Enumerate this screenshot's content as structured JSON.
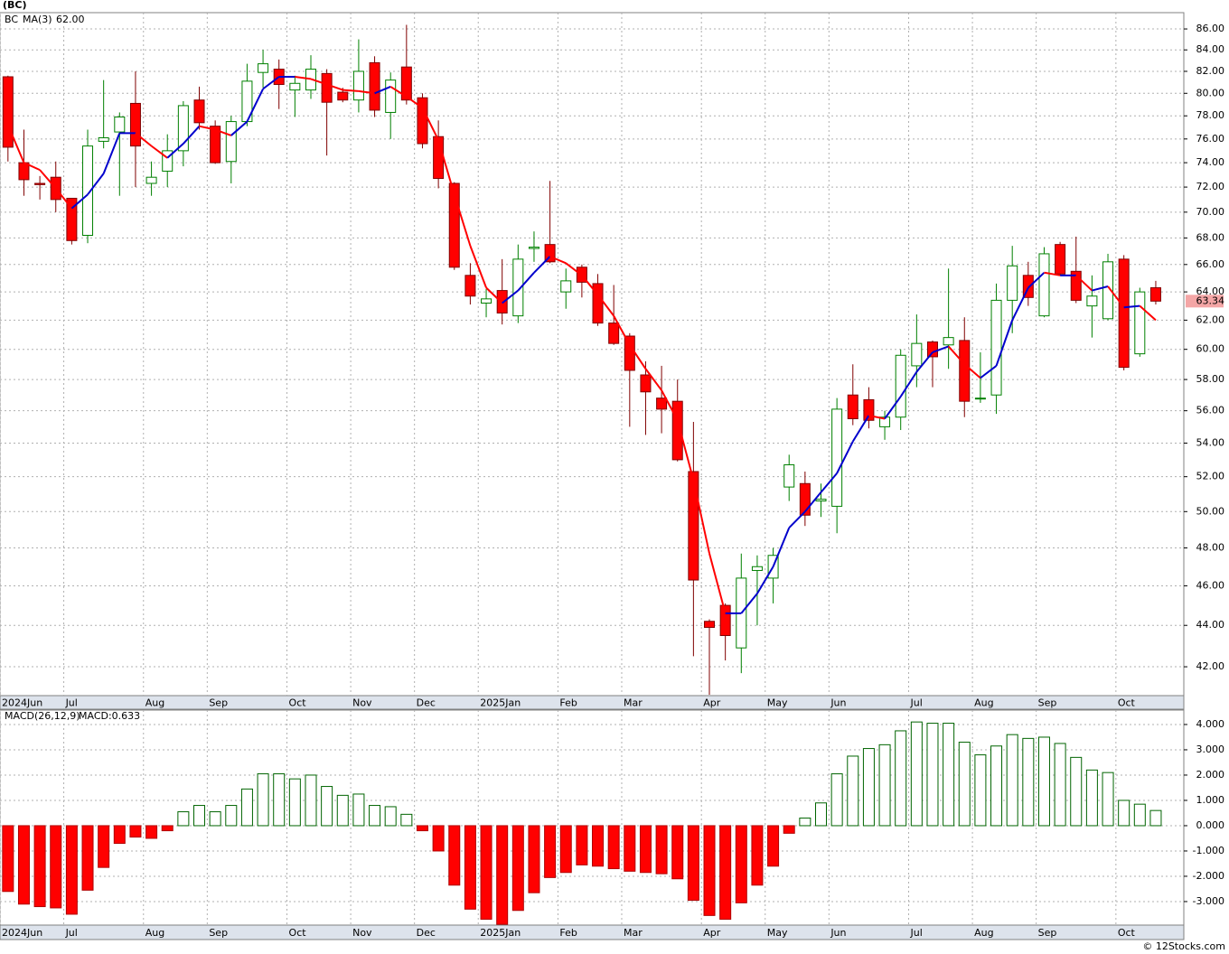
{
  "header": "(BC)",
  "footer": "© 12Stocks.com",
  "chart_data": [
    {
      "type": "candlestick",
      "symbol": "BC",
      "last_price_label": "63.34",
      "open": [
        81.5,
        74.0,
        72.3,
        72.8,
        71.1,
        68.2,
        75.8,
        76.6,
        79.1,
        72.3,
        73.3,
        75.0,
        79.4,
        77.1,
        74.1,
        77.5,
        81.9,
        82.2,
        80.3,
        80.3,
        81.8,
        80.1,
        79.4,
        82.8,
        78.3,
        82.4,
        79.6,
        76.2,
        72.3,
        65.2,
        63.2,
        64.1,
        62.3,
        67.2,
        67.5,
        64.0,
        65.8,
        64.6,
        61.8,
        60.9,
        58.3,
        56.8,
        56.6,
        52.3,
        44.2,
        45.0,
        42.9,
        46.8,
        46.4,
        51.4,
        51.6,
        50.6,
        50.3,
        57.0,
        56.7,
        55.0,
        55.6,
        58.9,
        60.5,
        60.3,
        60.6,
        56.8,
        57.0,
        63.4,
        65.2,
        62.3,
        67.5,
        65.5,
        63.0,
        62.1,
        66.4,
        59.7,
        64.3
      ],
      "high": [
        81.6,
        76.8,
        72.9,
        74.1,
        71.1,
        76.8,
        81.2,
        78.3,
        82.0,
        74.1,
        76.4,
        79.3,
        80.6,
        77.6,
        78.0,
        82.7,
        84.0,
        83.1,
        81.6,
        83.5,
        82.2,
        80.5,
        85.0,
        83.4,
        81.9,
        86.4,
        80.0,
        77.6,
        72.4,
        66.1,
        64.2,
        66.4,
        67.5,
        68.5,
        72.5,
        65.7,
        66.0,
        65.3,
        64.5,
        61.1,
        59.2,
        58.9,
        58.0,
        55.3,
        44.3,
        45.1,
        47.7,
        47.6,
        48.0,
        53.3,
        52.3,
        51.6,
        56.8,
        59.0,
        57.5,
        56.0,
        60.0,
        62.4,
        60.6,
        65.7,
        62.2,
        59.8,
        64.6,
        67.4,
        66.2,
        67.3,
        67.7,
        68.1,
        65.2,
        66.8,
        66.7,
        64.3,
        64.8
      ],
      "low": [
        74.1,
        71.3,
        71.0,
        70.0,
        67.5,
        67.6,
        75.2,
        71.3,
        72.0,
        71.3,
        72.0,
        73.7,
        76.8,
        73.9,
        72.3,
        77.1,
        80.5,
        78.6,
        77.9,
        79.5,
        74.6,
        79.2,
        78.3,
        77.9,
        76.0,
        79.0,
        75.2,
        71.9,
        65.6,
        63.1,
        62.2,
        61.7,
        61.8,
        66.2,
        66.1,
        62.8,
        63.6,
        61.6,
        60.3,
        55.0,
        54.5,
        54.6,
        52.9,
        42.5,
        40.7,
        42.3,
        41.7,
        44.0,
        45.1,
        50.6,
        49.2,
        49.7,
        48.8,
        55.1,
        54.9,
        54.2,
        54.8,
        57.5,
        57.5,
        58.7,
        55.6,
        56.5,
        55.8,
        61.1,
        63.0,
        62.2,
        65.2,
        63.2,
        60.8,
        62.0,
        58.6,
        59.5,
        63.1
      ],
      "close": [
        75.3,
        72.6,
        72.2,
        71.0,
        67.8,
        75.4,
        76.1,
        77.9,
        75.4,
        72.8,
        75.0,
        78.9,
        77.4,
        74.0,
        77.5,
        81.1,
        82.7,
        80.8,
        80.9,
        82.2,
        79.2,
        79.4,
        82.0,
        78.5,
        81.2,
        79.4,
        75.6,
        72.7,
        65.8,
        63.7,
        63.5,
        62.5,
        66.4,
        67.3,
        66.2,
        64.8,
        64.7,
        61.8,
        60.4,
        58.6,
        57.2,
        56.1,
        53.0,
        46.3,
        43.9,
        43.5,
        46.4,
        47.0,
        47.6,
        52.7,
        49.8,
        50.7,
        56.1,
        55.5,
        55.4,
        55.6,
        59.6,
        60.4,
        59.5,
        60.8,
        56.6,
        56.8,
        63.4,
        65.9,
        63.6,
        66.8,
        65.3,
        63.4,
        63.7,
        66.2,
        58.8,
        64.0,
        63.34
      ],
      "up_color": "#008000",
      "down_color": "#ff0000",
      "ma": {
        "name": "MA(3)",
        "last_label": "62.00",
        "rise_color": "#0000cc",
        "fall_color": "#ff0000",
        "values": [
          77.2,
          74.0,
          73.4,
          71.9,
          70.3,
          71.4,
          73.1,
          76.5,
          76.5,
          75.4,
          74.4,
          75.6,
          77.1,
          76.8,
          76.3,
          77.5,
          80.4,
          81.5,
          81.5,
          81.3,
          80.8,
          80.3,
          80.2,
          80.0,
          80.6,
          79.7,
          78.7,
          75.9,
          71.4,
          67.4,
          64.3,
          63.2,
          64.1,
          65.4,
          66.6,
          66.1,
          65.2,
          63.8,
          62.3,
          60.3,
          58.7,
          57.3,
          55.4,
          51.8,
          47.7,
          44.6,
          44.6,
          45.6,
          47.0,
          49.1,
          50.0,
          51.1,
          52.2,
          54.1,
          55.7,
          55.5,
          56.9,
          58.5,
          59.8,
          60.2,
          59.0,
          58.1,
          58.9,
          62.0,
          64.3,
          65.4,
          65.2,
          65.2,
          64.1,
          64.4,
          62.9,
          63.0,
          62.0
        ]
      },
      "log_scale": true,
      "grid": true,
      "ylim": [
        40.66,
        87.59
      ],
      "yticks": [
        {
          "value": 42,
          "label": "42.00"
        },
        {
          "value": 44,
          "label": "44.00"
        },
        {
          "value": 46,
          "label": "46.00"
        },
        {
          "value": 48,
          "label": "48.00"
        },
        {
          "value": 50,
          "label": "50.00"
        },
        {
          "value": 52,
          "label": "52.00"
        },
        {
          "value": 54,
          "label": "54.00"
        },
        {
          "value": 56,
          "label": "56.00"
        },
        {
          "value": 58,
          "label": "58.00"
        },
        {
          "value": 60,
          "label": "60.00"
        },
        {
          "value": 62,
          "label": "62.00"
        },
        {
          "value": 64,
          "label": "64.00"
        },
        {
          "value": 66,
          "label": "66.00"
        },
        {
          "value": 68,
          "label": "68.00"
        },
        {
          "value": 70,
          "label": "70.00"
        },
        {
          "value": 72,
          "label": "72.00"
        },
        {
          "value": 74,
          "label": "74.00"
        },
        {
          "value": 76,
          "label": "76.00"
        },
        {
          "value": 78,
          "label": "78.00"
        },
        {
          "value": 80,
          "label": "80.00"
        },
        {
          "value": 82,
          "label": "82.00"
        },
        {
          "value": 84,
          "label": "84.00"
        },
        {
          "value": 86,
          "label": "86.00"
        }
      ],
      "xlim": [
        -0.5,
        73.76
      ],
      "xticks": [
        {
          "value": -0.5,
          "label": "2024Jun"
        },
        {
          "value": 3.5,
          "label": "Jul"
        },
        {
          "value": 8.5,
          "label": "Aug"
        },
        {
          "value": 12.5,
          "label": "Sep"
        },
        {
          "value": 17.5,
          "label": "Oct"
        },
        {
          "value": 21.5,
          "label": "Nov"
        },
        {
          "value": 25.5,
          "label": "Dec"
        },
        {
          "value": 29.5,
          "label": "2025Jan"
        },
        {
          "value": 34.5,
          "label": "Feb"
        },
        {
          "value": 38.5,
          "label": "Mar"
        },
        {
          "value": 43.5,
          "label": "Apr"
        },
        {
          "value": 47.5,
          "label": "May"
        },
        {
          "value": 51.5,
          "label": "Jun"
        },
        {
          "value": 56.5,
          "label": "Jul"
        },
        {
          "value": 60.5,
          "label": "Aug"
        },
        {
          "value": 64.5,
          "label": "Sep"
        },
        {
          "value": 69.5,
          "label": "Oct"
        }
      ]
    },
    {
      "type": "macd-histogram",
      "title": "MACD(26,12,9)",
      "subtitle": "MACD:0.633",
      "values": [
        -2.6,
        -3.1,
        -3.2,
        -3.25,
        -3.5,
        -2.55,
        -1.65,
        -0.7,
        -0.45,
        -0.5,
        -0.2,
        0.55,
        0.8,
        0.55,
        0.8,
        1.45,
        2.05,
        2.05,
        1.85,
        2.0,
        1.55,
        1.2,
        1.25,
        0.8,
        0.75,
        0.45,
        -0.2,
        -1.0,
        -2.35,
        -3.3,
        -3.7,
        -3.9,
        -3.35,
        -2.65,
        -2.05,
        -1.85,
        -1.55,
        -1.6,
        -1.7,
        -1.8,
        -1.85,
        -1.9,
        -2.1,
        -2.95,
        -3.55,
        -3.7,
        -3.05,
        -2.35,
        -1.6,
        -0.3,
        0.3,
        0.9,
        2.05,
        2.75,
        3.05,
        3.2,
        3.75,
        4.1,
        4.05,
        4.05,
        3.3,
        2.8,
        3.15,
        3.6,
        3.45,
        3.5,
        3.25,
        2.7,
        2.2,
        2.1,
        1.0,
        0.85,
        0.6
      ],
      "pos_color": "#006400",
      "neg_color": "#ff0000",
      "grid": true,
      "ylim": [
        -3.93,
        4.57
      ],
      "yticks": [
        {
          "value": 4,
          "label": "4.000"
        },
        {
          "value": 3,
          "label": "3.000"
        },
        {
          "value": 2,
          "label": "2.000"
        },
        {
          "value": 1,
          "label": "1.000"
        },
        {
          "value": 0,
          "label": "0.000"
        },
        {
          "value": -1,
          "label": "-1.000"
        },
        {
          "value": -2,
          "label": "-2.000"
        },
        {
          "value": -3,
          "label": "-3.000"
        }
      ],
      "xlim": [
        -0.5,
        73.76
      ],
      "xticks": [
        {
          "value": -0.5,
          "label": "2024Jun"
        },
        {
          "value": 3.5,
          "label": "Jul"
        },
        {
          "value": 8.5,
          "label": "Aug"
        },
        {
          "value": 12.5,
          "label": "Sep"
        },
        {
          "value": 17.5,
          "label": "Oct"
        },
        {
          "value": 21.5,
          "label": "Nov"
        },
        {
          "value": 25.5,
          "label": "Dec"
        },
        {
          "value": 29.5,
          "label": "2025Jan"
        },
        {
          "value": 34.5,
          "label": "Feb"
        },
        {
          "value": 38.5,
          "label": "Mar"
        },
        {
          "value": 43.5,
          "label": "Apr"
        },
        {
          "value": 47.5,
          "label": "May"
        },
        {
          "value": 51.5,
          "label": "Jun"
        },
        {
          "value": 56.5,
          "label": "Jul"
        },
        {
          "value": 60.5,
          "label": "Aug"
        },
        {
          "value": 64.5,
          "label": "Sep"
        },
        {
          "value": 69.5,
          "label": "Oct"
        }
      ]
    }
  ]
}
